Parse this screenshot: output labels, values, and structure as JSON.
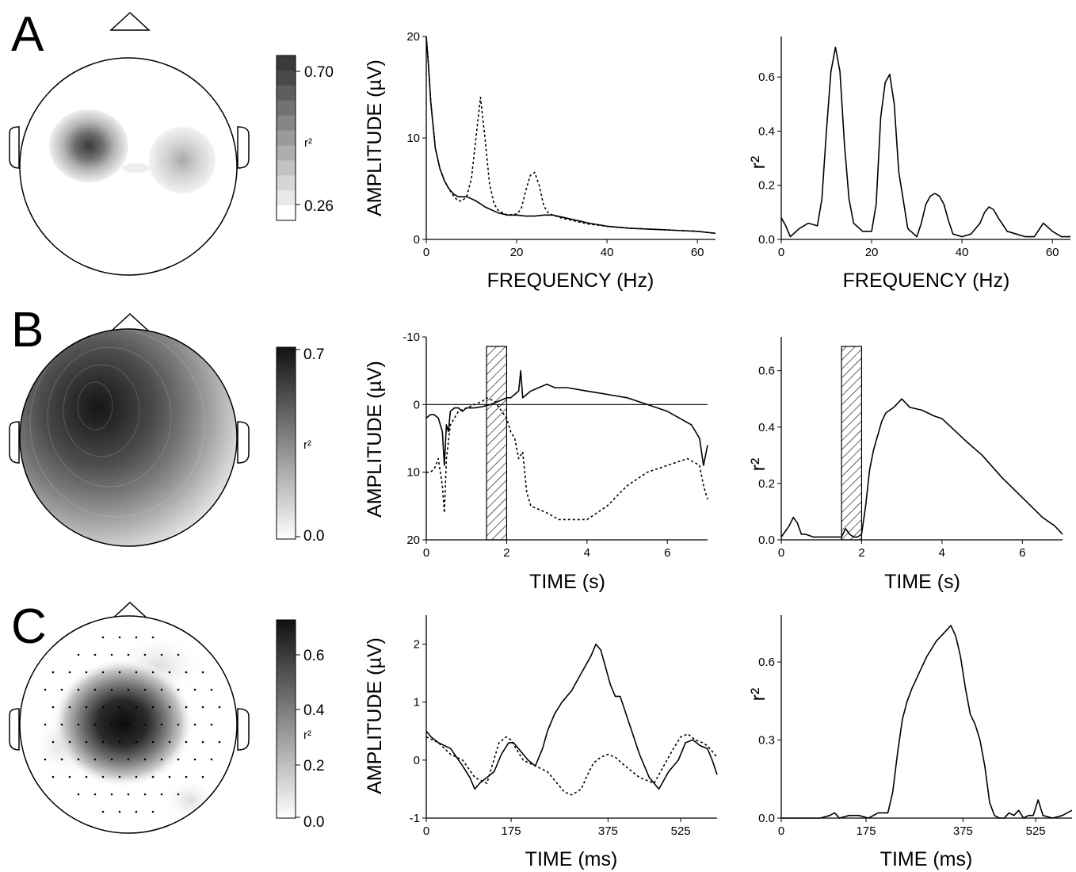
{
  "rows": [
    {
      "letter": "A",
      "colorbar": {
        "ticks": [
          "0.70",
          "0.26"
        ],
        "label": "r²",
        "style": "discrete"
      },
      "amplitude_chart": {
        "type": "line",
        "xlabel": "FREQUENCY (Hz)",
        "ylabel": "AMPLITUDE (µV)",
        "xlim": [
          0,
          64
        ],
        "ylim": [
          0,
          20
        ],
        "y_inverted": false,
        "xticks": [
          0,
          20,
          40,
          60
        ],
        "yticks": [
          0,
          10,
          20
        ],
        "series": [
          {
            "style": "solid",
            "x": [
              0,
              0.5,
              1,
              2,
              3,
              4,
              5,
              6,
              7,
              8,
              9,
              10,
              11,
              12,
              13,
              14,
              15,
              16,
              18,
              20,
              22,
              24,
              26,
              28,
              30,
              33,
              36,
              40,
              45,
              50,
              55,
              60,
              64
            ],
            "y": [
              20,
              17,
              13.5,
              9,
              7,
              5.8,
              5,
              4.5,
              4.2,
              4.2,
              4.2,
              4,
              3.8,
              3.5,
              3.2,
              3,
              2.8,
              2.6,
              2.4,
              2.4,
              2.3,
              2.3,
              2.4,
              2.4,
              2.2,
              1.9,
              1.6,
              1.3,
              1.1,
              1,
              0.9,
              0.8,
              0.6
            ]
          },
          {
            "style": "dotted",
            "x": [
              0,
              0.5,
              1,
              2,
              3,
              4,
              5,
              6,
              7,
              8,
              9,
              10,
              11,
              12,
              13,
              14,
              15,
              16,
              18,
              20,
              21,
              22,
              23,
              24,
              25,
              26,
              27,
              28,
              30,
              33,
              36,
              40,
              45,
              50,
              55,
              60,
              64
            ],
            "y": [
              20,
              17,
              13.5,
              9,
              7,
              5.8,
              5,
              4.3,
              3.8,
              3.8,
              4.3,
              6,
              10,
              14,
              10,
              5.5,
              3.5,
              2.8,
              2.4,
              2.5,
              3,
              4.8,
              6.3,
              6.6,
              5.3,
              3.3,
              2.6,
              2.4,
              2.1,
              1.8,
              1.5,
              1.3,
              1.1,
              1,
              0.9,
              0.8,
              0.6
            ]
          }
        ]
      },
      "r2_chart": {
        "type": "line",
        "xlabel": "FREQUENCY (Hz)",
        "ylabel": "r²",
        "xlim": [
          0,
          64
        ],
        "ylim": [
          0,
          0.75
        ],
        "y_inverted": false,
        "xticks": [
          0,
          20,
          40,
          60
        ],
        "yticks": [
          0.0,
          0.2,
          0.4,
          0.6
        ],
        "ytick_labels": [
          "0.0",
          "0.2",
          "0.4",
          "0.6"
        ],
        "series": [
          {
            "style": "solid",
            "x": [
              0,
              1,
              2,
              4,
              6,
              8,
              9,
              10,
              11,
              12,
              13,
              14,
              15,
              16,
              18,
              20,
              21,
              22,
              23,
              24,
              25,
              26,
              28,
              30,
              31,
              32,
              33,
              34,
              35,
              36,
              37,
              38,
              40,
              42,
              44,
              45,
              46,
              47,
              48,
              50,
              52,
              54,
              56,
              58,
              60,
              62,
              64
            ],
            "y": [
              0.08,
              0.05,
              0.01,
              0.04,
              0.06,
              0.05,
              0.15,
              0.4,
              0.62,
              0.71,
              0.62,
              0.35,
              0.15,
              0.06,
              0.03,
              0.03,
              0.13,
              0.45,
              0.58,
              0.61,
              0.5,
              0.25,
              0.04,
              0.01,
              0.06,
              0.13,
              0.16,
              0.17,
              0.16,
              0.13,
              0.07,
              0.02,
              0.01,
              0.02,
              0.06,
              0.1,
              0.12,
              0.11,
              0.08,
              0.03,
              0.02,
              0.01,
              0.01,
              0.06,
              0.03,
              0.01,
              0.01
            ]
          }
        ]
      }
    },
    {
      "letter": "B",
      "colorbar": {
        "ticks": [
          "0.7",
          "0.0"
        ],
        "label": "r²",
        "style": "continuous"
      },
      "amplitude_chart": {
        "type": "line",
        "xlabel": "TIME (s)",
        "ylabel": "AMPLITUDE (µV)",
        "xlim": [
          0,
          7
        ],
        "ylim": [
          -10,
          20
        ],
        "y_inverted": true,
        "xticks": [
          0,
          2,
          4,
          6
        ],
        "yticks": [
          -10,
          0,
          10,
          20
        ],
        "shaded_interval": [
          1.5,
          2.0
        ],
        "hline": 0,
        "series": [
          {
            "style": "solid",
            "x": [
              0,
              0.1,
              0.2,
              0.3,
              0.4,
              0.45,
              0.5,
              0.55,
              0.6,
              0.7,
              0.8,
              0.9,
              1,
              1.2,
              1.4,
              1.6,
              1.8,
              2,
              2.1,
              2.2,
              2.3,
              2.35,
              2.4,
              2.5,
              2.6,
              2.8,
              3,
              3.2,
              3.5,
              4,
              4.5,
              5,
              5.5,
              6,
              6.3,
              6.6,
              6.8,
              6.9,
              7
            ],
            "y": [
              2,
              1.5,
              1.5,
              2,
              4,
              9,
              3,
              4,
              1,
              0.5,
              0.5,
              1,
              0.5,
              0.5,
              0.3,
              0,
              -0.5,
              -1,
              -1,
              -1.5,
              -2,
              -5,
              -1,
              -1.5,
              -2,
              -2.5,
              -3,
              -2.5,
              -2.5,
              -2,
              -1.5,
              -1,
              0,
              1,
              2,
              3,
              5,
              9,
              6
            ]
          },
          {
            "style": "dotted",
            "x": [
              0,
              0.1,
              0.2,
              0.3,
              0.4,
              0.45,
              0.5,
              0.6,
              0.8,
              1,
              1.2,
              1.4,
              1.5,
              1.7,
              2,
              2.1,
              2.2,
              2.3,
              2.4,
              2.5,
              2.6,
              2.8,
              3,
              3.3,
              3.6,
              4,
              4.5,
              5,
              5.5,
              6,
              6.5,
              6.8,
              6.9,
              7
            ],
            "y": [
              10,
              10,
              9.5,
              8,
              12,
              16,
              8,
              3,
              1,
              0.5,
              0,
              -0.5,
              -1,
              -0.5,
              2,
              4,
              5,
              8,
              7,
              13,
              15,
              15.5,
              16,
              17,
              17,
              17,
              15,
              12,
              10,
              9,
              8,
              9,
              12,
              14
            ]
          }
        ]
      },
      "r2_chart": {
        "type": "line",
        "xlabel": "TIME (s)",
        "ylabel": "r²",
        "xlim": [
          0,
          7
        ],
        "ylim": [
          0,
          0.72
        ],
        "y_inverted": false,
        "xticks": [
          0,
          2,
          4,
          6
        ],
        "yticks": [
          0.0,
          0.2,
          0.4,
          0.6
        ],
        "ytick_labels": [
          "0.0",
          "0.2",
          "0.4",
          "0.6"
        ],
        "shaded_interval": [
          1.5,
          2.0
        ],
        "series": [
          {
            "style": "solid",
            "x": [
              0,
              0.1,
              0.2,
              0.3,
              0.4,
              0.5,
              0.6,
              0.8,
              1,
              1.2,
              1.4,
              1.5,
              1.6,
              1.7,
              1.8,
              1.9,
              2,
              2.1,
              2.2,
              2.3,
              2.4,
              2.5,
              2.6,
              2.8,
              3,
              3.2,
              3.5,
              3.8,
              4,
              4.3,
              4.6,
              5,
              5.5,
              6,
              6.5,
              6.8,
              7
            ],
            "y": [
              0.01,
              0.03,
              0.05,
              0.08,
              0.06,
              0.02,
              0.02,
              0.01,
              0.01,
              0.01,
              0.01,
              0.01,
              0.04,
              0.02,
              0.01,
              0.01,
              0.02,
              0.12,
              0.25,
              0.32,
              0.37,
              0.42,
              0.45,
              0.47,
              0.5,
              0.47,
              0.46,
              0.44,
              0.43,
              0.39,
              0.35,
              0.3,
              0.22,
              0.15,
              0.08,
              0.05,
              0.02
            ]
          }
        ]
      }
    },
    {
      "letter": "C",
      "colorbar": {
        "ticks": [
          "0.6",
          "0.4",
          "0.2",
          "0.0"
        ],
        "label": "r²",
        "style": "continuous"
      },
      "amplitude_chart": {
        "type": "line",
        "xlabel": "TIME (ms)",
        "ylabel": "AMPLITUDE (µV)",
        "xlim": [
          0,
          600
        ],
        "ylim": [
          -1,
          2.5
        ],
        "y_inverted": false,
        "xticks": [
          0,
          175,
          375,
          525
        ],
        "yticks": [
          -1,
          0,
          1,
          2
        ],
        "series": [
          {
            "style": "solid",
            "x": [
              0,
              10,
              25,
              50,
              75,
              90,
              100,
              110,
              125,
              140,
              155,
              170,
              180,
              190,
              200,
              210,
              225,
              240,
              250,
              265,
              280,
              300,
              320,
              340,
              350,
              360,
              370,
              380,
              390,
              400,
              420,
              440,
              460,
              480,
              500,
              520,
              535,
              550,
              565,
              580,
              590,
              600
            ],
            "y": [
              0.5,
              0.4,
              0.3,
              0.2,
              -0.1,
              -0.3,
              -0.5,
              -0.4,
              -0.3,
              -0.2,
              0.1,
              0.3,
              0.3,
              0.2,
              0.1,
              0.0,
              -0.1,
              0.2,
              0.5,
              0.8,
              1.0,
              1.2,
              1.5,
              1.8,
              2.0,
              1.9,
              1.6,
              1.3,
              1.1,
              1.1,
              0.6,
              0.1,
              -0.3,
              -0.5,
              -0.2,
              0.0,
              0.3,
              0.35,
              0.25,
              0.2,
              0.0,
              -0.25
            ]
          },
          {
            "style": "dotted",
            "x": [
              0,
              25,
              50,
              75,
              100,
              125,
              150,
              165,
              175,
              185,
              200,
              225,
              250,
              270,
              285,
              300,
              310,
              320,
              330,
              345,
              360,
              375,
              390,
              410,
              440,
              470,
              490,
              510,
              525,
              540,
              555,
              570,
              580,
              600
            ],
            "y": [
              0.4,
              0.3,
              0.1,
              0.0,
              -0.3,
              -0.4,
              0.3,
              0.4,
              0.35,
              0.2,
              0.0,
              -0.1,
              -0.2,
              -0.4,
              -0.55,
              -0.6,
              -0.55,
              -0.5,
              -0.3,
              -0.05,
              0.05,
              0.1,
              0.05,
              -0.1,
              -0.3,
              -0.4,
              -0.1,
              0.2,
              0.4,
              0.45,
              0.35,
              0.3,
              0.25,
              0.05
            ]
          }
        ]
      },
      "r2_chart": {
        "type": "line",
        "xlabel": "TIME (ms)",
        "ylabel": "r²",
        "xlim": [
          0,
          600
        ],
        "ylim": [
          0,
          0.78
        ],
        "y_inverted": false,
        "xticks": [
          0,
          175,
          375,
          525
        ],
        "yticks": [
          0.0,
          0.3,
          0.6
        ],
        "ytick_labels": [
          "0.0",
          "0.3",
          "0.6"
        ],
        "series": [
          {
            "style": "solid",
            "x": [
              0,
              20,
              50,
              80,
              100,
              110,
              120,
              140,
              160,
              180,
              200,
              220,
              230,
              240,
              250,
              260,
              270,
              280,
              290,
              300,
              310,
              320,
              330,
              340,
              350,
              360,
              370,
              380,
              390,
              400,
              410,
              420,
              430,
              440,
              450,
              460,
              470,
              480,
              490,
              500,
              510,
              520,
              530,
              540,
              560,
              580,
              600
            ],
            "y": [
              0.0,
              0.0,
              0.0,
              0.0,
              0.01,
              0.02,
              0.0,
              0.01,
              0.01,
              0.0,
              0.02,
              0.02,
              0.1,
              0.25,
              0.38,
              0.45,
              0.5,
              0.54,
              0.58,
              0.62,
              0.65,
              0.68,
              0.7,
              0.72,
              0.74,
              0.7,
              0.62,
              0.5,
              0.4,
              0.36,
              0.3,
              0.2,
              0.06,
              0.01,
              0.0,
              0.0,
              0.02,
              0.01,
              0.03,
              0.0,
              0.01,
              0.01,
              0.07,
              0.01,
              0.0,
              0.01,
              0.03
            ]
          }
        ]
      }
    }
  ]
}
